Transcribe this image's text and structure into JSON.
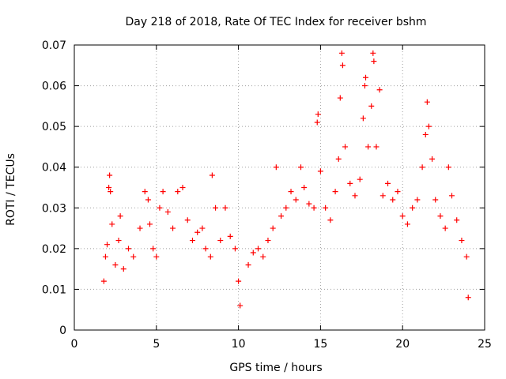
{
  "chart_data": {
    "type": "scatter",
    "title": "Day 218 of 2018, Rate Of TEC Index for receiver bshm",
    "xlabel": "GPS time / hours",
    "ylabel": "ROTI / TECUs",
    "xlim": [
      0,
      25
    ],
    "ylim": [
      0,
      0.07
    ],
    "x_ticks": [
      0,
      5,
      10,
      15,
      20,
      25
    ],
    "x_tick_labels": [
      "0",
      "5",
      "10",
      "15",
      "20",
      "25"
    ],
    "y_ticks": [
      0,
      0.01,
      0.02,
      0.03,
      0.04,
      0.05,
      0.06,
      0.07
    ],
    "y_tick_labels": [
      "0",
      "0.01",
      "0.02",
      "0.03",
      "0.04",
      "0.05",
      "0.06",
      "0.07"
    ],
    "grid": true,
    "marker": "+",
    "series_color": "#ff0000",
    "series": [
      {
        "name": "ROTI",
        "points": [
          [
            1.8,
            0.012
          ],
          [
            1.9,
            0.018
          ],
          [
            2.0,
            0.021
          ],
          [
            2.1,
            0.035
          ],
          [
            2.15,
            0.038
          ],
          [
            2.2,
            0.034
          ],
          [
            2.3,
            0.026
          ],
          [
            2.5,
            0.016
          ],
          [
            2.7,
            0.022
          ],
          [
            2.8,
            0.028
          ],
          [
            3.0,
            0.015
          ],
          [
            3.3,
            0.02
          ],
          [
            3.6,
            0.018
          ],
          [
            4.0,
            0.025
          ],
          [
            4.3,
            0.034
          ],
          [
            4.5,
            0.032
          ],
          [
            4.6,
            0.026
          ],
          [
            4.8,
            0.02
          ],
          [
            5.0,
            0.018
          ],
          [
            5.2,
            0.03
          ],
          [
            5.4,
            0.034
          ],
          [
            5.7,
            0.029
          ],
          [
            6.0,
            0.025
          ],
          [
            6.3,
            0.034
          ],
          [
            6.6,
            0.035
          ],
          [
            6.9,
            0.027
          ],
          [
            7.2,
            0.022
          ],
          [
            7.5,
            0.024
          ],
          [
            7.8,
            0.025
          ],
          [
            8.0,
            0.02
          ],
          [
            8.3,
            0.018
          ],
          [
            8.4,
            0.038
          ],
          [
            8.6,
            0.03
          ],
          [
            8.9,
            0.022
          ],
          [
            9.2,
            0.03
          ],
          [
            9.5,
            0.023
          ],
          [
            9.8,
            0.02
          ],
          [
            10.0,
            0.012
          ],
          [
            10.1,
            0.006
          ],
          [
            10.6,
            0.016
          ],
          [
            10.9,
            0.019
          ],
          [
            11.2,
            0.02
          ],
          [
            11.5,
            0.018
          ],
          [
            11.8,
            0.022
          ],
          [
            12.1,
            0.025
          ],
          [
            12.3,
            0.04
          ],
          [
            12.6,
            0.028
          ],
          [
            12.9,
            0.03
          ],
          [
            13.2,
            0.034
          ],
          [
            13.5,
            0.032
          ],
          [
            13.8,
            0.04
          ],
          [
            14.0,
            0.035
          ],
          [
            14.3,
            0.031
          ],
          [
            14.6,
            0.03
          ],
          [
            14.8,
            0.051
          ],
          [
            14.85,
            0.053
          ],
          [
            15.0,
            0.039
          ],
          [
            15.3,
            0.03
          ],
          [
            15.6,
            0.027
          ],
          [
            15.9,
            0.034
          ],
          [
            16.1,
            0.042
          ],
          [
            16.2,
            0.057
          ],
          [
            16.3,
            0.068
          ],
          [
            16.35,
            0.065
          ],
          [
            16.5,
            0.045
          ],
          [
            16.8,
            0.036
          ],
          [
            17.1,
            0.033
          ],
          [
            17.4,
            0.037
          ],
          [
            17.6,
            0.052
          ],
          [
            17.7,
            0.06
          ],
          [
            17.75,
            0.062
          ],
          [
            17.9,
            0.045
          ],
          [
            18.1,
            0.055
          ],
          [
            18.2,
            0.068
          ],
          [
            18.25,
            0.066
          ],
          [
            18.4,
            0.045
          ],
          [
            18.6,
            0.059
          ],
          [
            18.8,
            0.033
          ],
          [
            19.1,
            0.036
          ],
          [
            19.4,
            0.032
          ],
          [
            19.7,
            0.034
          ],
          [
            20.0,
            0.028
          ],
          [
            20.3,
            0.026
          ],
          [
            20.6,
            0.03
          ],
          [
            20.9,
            0.032
          ],
          [
            21.2,
            0.04
          ],
          [
            21.4,
            0.048
          ],
          [
            21.5,
            0.056
          ],
          [
            21.6,
            0.05
          ],
          [
            21.8,
            0.042
          ],
          [
            22.0,
            0.032
          ],
          [
            22.3,
            0.028
          ],
          [
            22.6,
            0.025
          ],
          [
            22.8,
            0.04
          ],
          [
            23.0,
            0.033
          ],
          [
            23.3,
            0.027
          ],
          [
            23.6,
            0.022
          ],
          [
            23.9,
            0.018
          ],
          [
            24.0,
            0.008
          ]
        ]
      }
    ]
  }
}
